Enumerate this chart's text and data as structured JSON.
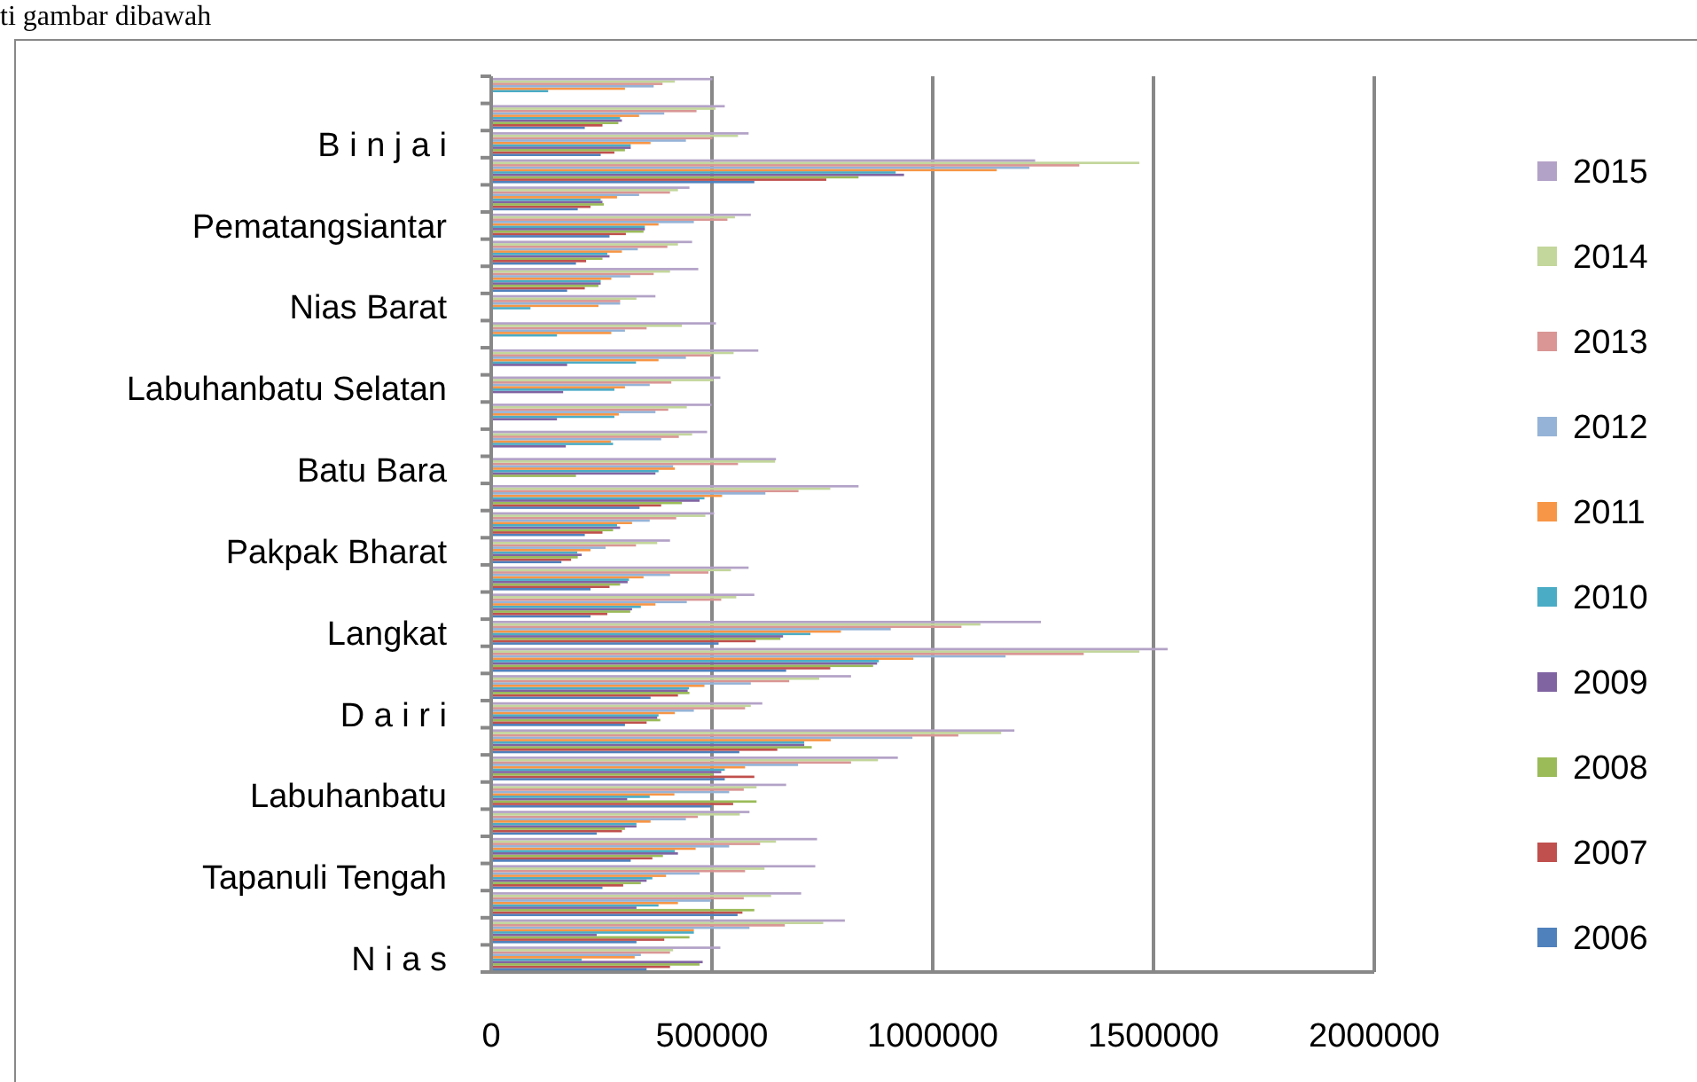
{
  "chart_data": {
    "type": "bar",
    "orientation": "horizontal",
    "annotations": [
      "ti gambar dibawah"
    ],
    "categories": [
      null,
      null,
      "B i n j a i",
      null,
      null,
      "Pematangsiantar",
      null,
      null,
      "Nias Barat",
      null,
      null,
      "Labuhanbatu Selatan",
      null,
      null,
      "Batu Bara",
      null,
      null,
      "Pakpak Bharat",
      null,
      null,
      "Langkat",
      null,
      null,
      "D a i r i",
      null,
      null,
      "Labuhanbatu",
      null,
      null,
      "Tapanuli Tengah",
      null,
      null,
      "N i a s"
    ],
    "series": [
      {
        "name": "2006",
        "color": "#4f81bd",
        "values": [
          null,
          212000,
          248000,
          596000,
          196000,
          268000,
          192000,
          172000,
          null,
          null,
          null,
          null,
          null,
          null,
          null,
          336000,
          212000,
          159000,
          225000,
          225000,
          515000,
          668000,
          361000,
          303000,
          562000,
          529000,
          499000,
          239000,
          316000,
          252000,
          558000,
          329000,
          352000
        ]
      },
      {
        "name": "2007",
        "color": "#c0504d",
        "values": [
          null,
          252000,
          279000,
          759000,
          225000,
          305000,
          215000,
          212000,
          null,
          null,
          null,
          null,
          null,
          null,
          null,
          385000,
          252000,
          181000,
          268000,
          263000,
          599000,
          768000,
          423000,
          352000,
          648000,
          596000,
          548000,
          296000,
          365000,
          299000,
          569000,
          392000,
          405000
        ]
      },
      {
        "name": "2008",
        "color": "#9bbb59",
        "values": [
          null,
          288000,
          303000,
          832000,
          255000,
          345000,
          252000,
          243000,
          null,
          null,
          null,
          null,
          null,
          null,
          192000,
          432000,
          276000,
          196000,
          292000,
          315000,
          655000,
          865000,
          449000,
          383000,
          726000,
          503000,
          601000,
          303000,
          389000,
          339000,
          596000,
          449000,
          472000
        ]
      },
      {
        "name": "2009",
        "color": "#8064a2",
        "values": [
          null,
          296000,
          316000,
          935000,
          252000,
          348000,
          268000,
          248000,
          null,
          null,
          172000,
          163000,
          149000,
          169000,
          372000,
          472000,
          292000,
          205000,
          309000,
          319000,
          661000,
          874000,
          445000,
          376000,
          709000,
          521000,
          308000,
          329000,
          423000,
          352000,
          329000,
          239000,
          479000
        ]
      },
      {
        "name": "2010",
        "color": "#4bacc6",
        "values": [
          129000,
          292000,
          316000,
          916000,
          248000,
          348000,
          263000,
          248000,
          89000,
          149000,
          328000,
          279000,
          279000,
          276000,
          379000,
          483000,
          285000,
          195000,
          312000,
          339000,
          723000,
          878000,
          448000,
          379000,
          709000,
          529000,
          359000,
          329000,
          416000,
          365000,
          379000,
          459000,
          205000
        ]
      },
      {
        "name": "2011",
        "color": "#f79646",
        "values": [
          303000,
          335000,
          361000,
          1145000,
          285000,
          379000,
          296000,
          272000,
          243000,
          272000,
          379000,
          303000,
          289000,
          271000,
          416000,
          523000,
          319000,
          225000,
          345000,
          372000,
          792000,
          956000,
          483000,
          416000,
          769000,
          575000,
          415000,
          361000,
          463000,
          396000,
          423000,
          459000,
          325000
        ]
      },
      {
        "name": "2012",
        "color": "#95b3d7",
        "values": [
          368000,
          392000,
          441000,
          1219000,
          335000,
          459000,
          332000,
          315000,
          292000,
          303000,
          441000,
          359000,
          372000,
          385000,
          412000,
          621000,
          359000,
          259000,
          405000,
          443000,
          905000,
          1165000,
          588000,
          459000,
          954000,
          695000,
          539000,
          441000,
          539000,
          472000,
          498000,
          585000,
          339000
        ]
      },
      {
        "name": "2013",
        "color": "#d99694",
        "values": [
          388000,
          465000,
          501000,
          1332000,
          405000,
          535000,
          399000,
          368000,
          292000,
          352000,
          499000,
          408000,
          401000,
          425000,
          559000,
          696000,
          419000,
          328000,
          492000,
          521000,
          1065000,
          1342000,
          675000,
          575000,
          1058000,
          815000,
          572000,
          468000,
          609000,
          575000,
          572000,
          665000,
          405000
        ]
      },
      {
        "name": "2014",
        "color": "#c3d69b",
        "values": [
          416000,
          508000,
          559000,
          1468000,
          423000,
          552000,
          423000,
          405000,
          329000,
          432000,
          549000,
          503000,
          443000,
          455000,
          643000,
          768000,
          485000,
          376000,
          543000,
          555000,
          1108000,
          1468000,
          743000,
          588000,
          1155000,
          876000,
          601000,
          563000,
          645000,
          619000,
          634000,
          752000,
          412000
        ]
      },
      {
        "name": "2015",
        "color": "#b3a2c7",
        "values": [
          501000,
          529000,
          583000,
          1232000,
          449000,
          588000,
          455000,
          469000,
          372000,
          509000,
          605000,
          519000,
          499000,
          489000,
          645000,
          832000,
          505000,
          405000,
          583000,
          596000,
          1245000,
          1532000,
          815000,
          614000,
          1185000,
          921000,
          668000,
          585000,
          738000,
          734000,
          702000,
          801000,
          519000
        ]
      }
    ],
    "xlim": [
      0,
      2000000
    ],
    "xticks": [
      0,
      500000,
      1000000,
      1500000,
      2000000
    ],
    "grid": "x",
    "legend": "right"
  }
}
